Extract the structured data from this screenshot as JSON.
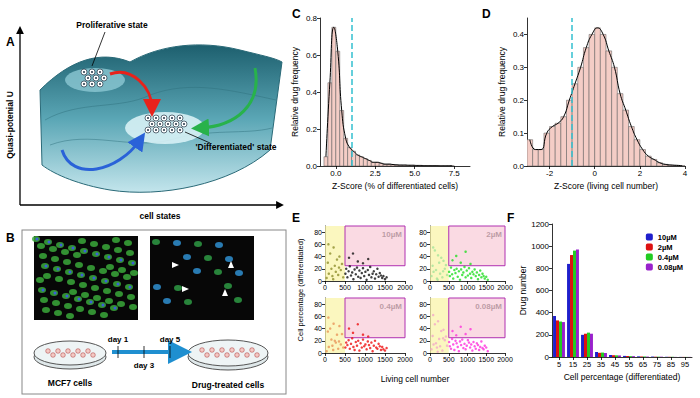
{
  "chart_data": [
    {
      "panel": "C",
      "type": "histogram",
      "xlabel": "Z-Score (% of differentiated cells)",
      "ylabel": "Relative drug frequency",
      "bins": [
        -0.75,
        -0.5,
        -0.25,
        0,
        0.25,
        0.5,
        0.75,
        1,
        1.25,
        1.5,
        1.75,
        2,
        2.25,
        2.5,
        2.75,
        3,
        3.25,
        3.5,
        3.75,
        4,
        4.25,
        4.5,
        4.75,
        5,
        5.25,
        5.5,
        5.75,
        6,
        6.25,
        6.5,
        6.75,
        7,
        7.25,
        7.5
      ],
      "values": [
        0.05,
        0.45,
        0.75,
        0.62,
        0.3,
        0.15,
        0.1,
        0.08,
        0.06,
        0.05,
        0.04,
        0.03,
        0.02,
        0.02,
        0.015,
        0.01,
        0.01,
        0.008,
        0.006,
        0.005,
        0.005,
        0.004,
        0.004,
        0.003,
        0.003,
        0.002,
        0.002,
        0.002,
        0.002,
        0.001,
        0.001,
        0.001,
        0.001
      ],
      "color": "#f4cdc6",
      "xlim": [
        -1,
        8.5
      ],
      "ylim": [
        0,
        0.8
      ],
      "xticks": [
        {
          "value": 0,
          "label": "0.0"
        },
        2.5,
        {
          "value": 5,
          "label": "5.0"
        },
        7.5
      ],
      "yticks": [
        {
          "value": 0,
          "label": "0.0"
        },
        0.2,
        0.4,
        0.6,
        0.8
      ],
      "grid": false,
      "reference_line": {
        "x": 1,
        "color": "#33c0d0",
        "line_style": "dashed"
      }
    },
    {
      "panel": "D",
      "type": "histogram",
      "xlabel": "Z-Score (living cell number)",
      "ylabel": "Relative drug frequency",
      "bins": [
        -3,
        -2.75,
        -2.5,
        -2.25,
        -2,
        -1.75,
        -1.5,
        -1.25,
        -1,
        -0.75,
        -0.5,
        -0.25,
        0,
        0.25,
        0.5,
        0.75,
        1,
        1.25,
        1.5,
        1.75,
        2,
        2.25,
        2.5,
        2.75,
        3,
        3.25,
        3.5,
        3.75,
        4
      ],
      "values": [
        0.08,
        0.05,
        0.05,
        0.1,
        0.12,
        0.13,
        0.15,
        0.2,
        0.25,
        0.3,
        0.36,
        0.4,
        0.42,
        0.4,
        0.35,
        0.3,
        0.22,
        0.17,
        0.12,
        0.08,
        0.05,
        0.03,
        0.02,
        0.01,
        0.005,
        0.003,
        0.002,
        0.001
      ],
      "color": "#f4cdc6",
      "xlim": [
        -3,
        4
      ],
      "ylim": [
        0,
        0.45
      ],
      "xticks": [
        -2,
        0,
        2,
        4
      ],
      "yticks": [
        {
          "value": 0,
          "label": "0.0"
        },
        0.1,
        0.2,
        0.3,
        0.4
      ],
      "grid": false,
      "reference_line": {
        "x": -1,
        "color": "#33c0d0",
        "line_style": "dashed"
      }
    },
    {
      "panel": "E",
      "type": "scatter",
      "xlabel": "Living cell number",
      "ylabel": "Cell percentage (differentiated)",
      "xlim": [
        0,
        2000
      ],
      "ylim": [
        0,
        90
      ],
      "xticks": [
        0,
        500,
        1000,
        1500,
        2000
      ],
      "yticks": [
        0,
        20,
        40,
        60,
        80
      ],
      "grid": false,
      "reference_lines": {
        "x": 500,
        "y": 25
      },
      "panels": [
        {
          "title": "10µM",
          "series": [
            {
              "color": "#8e8e2e",
              "x": [
                40,
                70,
                95,
                130,
                160,
                185,
                215,
                245,
                270,
                300,
                330,
                360,
                395,
                425,
                455,
                85,
                205,
                350
              ],
              "y": [
                5,
                30,
                12,
                45,
                20,
                8,
                55,
                25,
                15,
                35,
                10,
                40,
                18,
                28,
                6,
                60,
                3,
                22
              ]
            },
            {
              "color": "#111111",
              "x": [
                510,
                530,
                560,
                590,
                620,
                650,
                680,
                710,
                740,
                770,
                800,
                830,
                860,
                890,
                920,
                950,
                980,
                1010,
                1040,
                1070,
                1100,
                1130,
                1160,
                1190,
                1220,
                1250,
                1280,
                1310,
                1340,
                1370,
                1400,
                1430,
                1460,
                1500,
                1540,
                600,
                700,
                820,
                950,
                1080
              ],
              "y": [
                12,
                20,
                6,
                16,
                24,
                9,
                14,
                3,
                19,
                11,
                22,
                7,
                17,
                5,
                13,
                21,
                8,
                15,
                2,
                18,
                10,
                23,
                6,
                12,
                16,
                4,
                11,
                20,
                7,
                13,
                9,
                5,
                8,
                3,
                6,
                38,
                45,
                32,
                29,
                36
              ]
            }
          ]
        },
        {
          "title": "2µM",
          "series": [
            {
              "color": "#a6e39a",
              "x": [
                40,
                70,
                95,
                130,
                160,
                185,
                215,
                245,
                270,
                300,
                330,
                360,
                395,
                425,
                455,
                85,
                205,
                350
              ],
              "y": [
                8,
                25,
                15,
                50,
                18,
                4,
                42,
                30,
                12,
                38,
                6,
                33,
                20,
                26,
                10,
                55,
                2,
                16
              ]
            },
            {
              "color": "#22dd22",
              "x": [
                510,
                530,
                560,
                590,
                620,
                650,
                680,
                710,
                740,
                770,
                800,
                830,
                860,
                890,
                920,
                950,
                980,
                1010,
                1040,
                1070,
                1100,
                1130,
                1160,
                1190,
                1220,
                1250,
                1280,
                1310,
                1340,
                1370,
                1400,
                1430,
                1460,
                1500,
                1540,
                600,
                700,
                820,
                950,
                1080
              ],
              "y": [
                15,
                8,
                22,
                11,
                4,
                18,
                13,
                20,
                7,
                16,
                2,
                19,
                10,
                14,
                23,
                6,
                17,
                9,
                21,
                12,
                5,
                15,
                11,
                19,
                8,
                14,
                3,
                10,
                17,
                6,
                12,
                8,
                4,
                7,
                2,
                34,
                41,
                30,
                48,
                28
              ]
            }
          ]
        },
        {
          "title": "0.4µM",
          "series": [
            {
              "color": "#e8955a",
              "x": [
                40,
                70,
                95,
                130,
                160,
                185,
                215,
                245,
                270,
                300,
                330,
                360,
                395,
                425,
                455,
                85,
                205,
                350
              ],
              "y": [
                3,
                35,
                10,
                40,
                22,
                12,
                48,
                20,
                17,
                30,
                7,
                44,
                14,
                31,
                9,
                58,
                5,
                19
              ]
            },
            {
              "color": "#ee1111",
              "x": [
                510,
                530,
                560,
                590,
                620,
                650,
                680,
                710,
                740,
                770,
                800,
                830,
                860,
                890,
                920,
                950,
                980,
                1010,
                1040,
                1070,
                1100,
                1130,
                1160,
                1190,
                1220,
                1250,
                1280,
                1310,
                1340,
                1370,
                1400,
                1430,
                1460,
                1500,
                1540,
                600,
                700,
                820,
                950,
                1080
              ],
              "y": [
                9,
                17,
                13,
                21,
                7,
                15,
                24,
                10,
                5,
                18,
                12,
                20,
                4,
                16,
                9,
                22,
                11,
                14,
                6,
                19,
                13,
                8,
                17,
                3,
                12,
                20,
                9,
                7,
                15,
                11,
                5,
                10,
                6,
                4,
                8,
                40,
                33,
                47,
                30,
                27
              ]
            }
          ]
        },
        {
          "title": "0.08µM",
          "series": [
            {
              "color": "#f2a7c8",
              "x": [
                40,
                70,
                95,
                130,
                160,
                185,
                215,
                245,
                270,
                300,
                330,
                360,
                395,
                425,
                455,
                85,
                205,
                350
              ],
              "y": [
                6,
                28,
                14,
                47,
                16,
                9,
                52,
                23,
                11,
                36,
                4,
                38,
                21,
                27,
                12,
                62,
                2,
                24
              ]
            },
            {
              "color": "#ff33dd",
              "x": [
                510,
                530,
                560,
                590,
                620,
                650,
                680,
                710,
                740,
                770,
                800,
                830,
                860,
                890,
                920,
                950,
                980,
                1010,
                1040,
                1070,
                1100,
                1130,
                1160,
                1190,
                1220,
                1250,
                1280,
                1310,
                1340,
                1370,
                1400,
                1430,
                1460,
                1500,
                1540,
                600,
                700,
                820,
                950,
                1080
              ],
              "y": [
                18,
                11,
                7,
                23,
                14,
                5,
                20,
                16,
                10,
                3,
                19,
                13,
                22,
                8,
                15,
                6,
                12,
                21,
                17,
                9,
                14,
                4,
                18,
                11,
                7,
                16,
                13,
                5,
                10,
                19,
                8,
                6,
                12,
                9,
                3,
                36,
                29,
                43,
                31,
                39
              ]
            }
          ]
        }
      ]
    },
    {
      "panel": "F",
      "type": "bar",
      "xlabel": "Cell percentage (differentiated)",
      "ylabel": "Drug number",
      "categories": [
        5,
        15,
        25,
        35,
        45,
        55,
        65,
        75,
        85,
        95
      ],
      "series": [
        {
          "name": "10µM",
          "color": "#1f1fcc",
          "values": [
            370,
            840,
            200,
            45,
            18,
            10,
            6,
            4,
            2,
            1
          ]
        },
        {
          "name": "2µM",
          "color": "#dd1111",
          "values": [
            330,
            920,
            210,
            38,
            16,
            9,
            5,
            3,
            2,
            1
          ]
        },
        {
          "name": "0.4µM",
          "color": "#22cc22",
          "values": [
            320,
            960,
            220,
            40,
            15,
            8,
            5,
            3,
            2,
            1
          ]
        },
        {
          "name": "0.08µM",
          "color": "#9922cc",
          "values": [
            315,
            970,
            210,
            36,
            14,
            8,
            4,
            3,
            1,
            1
          ]
        }
      ],
      "ylim": [
        0,
        1200
      ],
      "yticks": [
        0,
        200,
        400,
        600,
        800,
        1000,
        1200
      ],
      "grid": false,
      "legend": "top-right"
    }
  ],
  "diagrams": [
    {
      "panel": "A",
      "y_axis": "Quasi-potenial U",
      "x_axis": "cell states",
      "labels": [
        "Proliferative state",
        "'Differentiated' state"
      ]
    },
    {
      "panel": "B",
      "start": "MCF7 cells",
      "end": "Drug-treated cells",
      "steps": [
        "day 1",
        "day 3",
        "day 5"
      ]
    }
  ]
}
